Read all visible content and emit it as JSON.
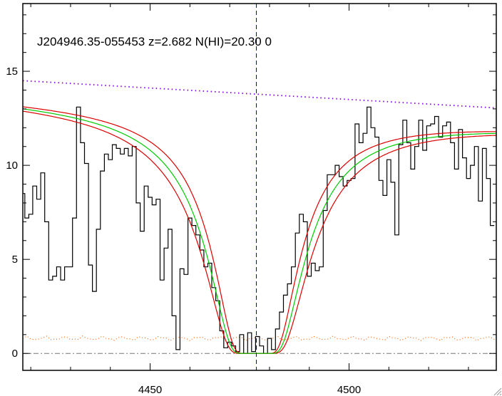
{
  "chart_data": {
    "type": "line",
    "title": "J204946.35-055453 z=2.682 N(HI)=20.30 0",
    "xlabel": "",
    "ylabel": "",
    "xlim": [
      4418,
      4537
    ],
    "ylim": [
      -0.9,
      18.6
    ],
    "x_ticks": [
      4450,
      4500
    ],
    "y_ticks": [
      0,
      5,
      10,
      15
    ],
    "grid": false,
    "vline_x": 4476.7,
    "zero_line_y": 0,
    "colors": {
      "spectrum": "#000000",
      "fit": "#00cc00",
      "fit_bounds": "#dd0000",
      "continuum": "#8800ff",
      "error": "#ff6600",
      "vline": "#0000cc",
      "zero_line": "#777777"
    },
    "series": [
      {
        "kind": "spectrum",
        "x": [
          4418,
          4419,
          4420,
          4421,
          4422,
          4423,
          4424,
          4425,
          4426,
          4427,
          4428,
          4429,
          4430,
          4431,
          4432,
          4433,
          4434,
          4435,
          4436,
          4437,
          4438,
          4439,
          4440,
          4441,
          4442,
          4443,
          4444,
          4445,
          4446,
          4447,
          4448,
          4449,
          4450,
          4451,
          4452,
          4453,
          4454,
          4455,
          4456,
          4457,
          4458,
          4459,
          4460,
          4461,
          4462,
          4463,
          4464,
          4465,
          4466,
          4467,
          4468,
          4469,
          4470,
          4471,
          4472,
          4473,
          4474,
          4475,
          4476,
          4477,
          4478,
          4479,
          4480,
          4481,
          4482,
          4483,
          4484,
          4485,
          4486,
          4487,
          4488,
          4489,
          4490,
          4491,
          4492,
          4493,
          4494,
          4495,
          4496,
          4497,
          4498,
          4499,
          4500,
          4501,
          4502,
          4503,
          4504,
          4505,
          4506,
          4507,
          4508,
          4509,
          4510,
          4511,
          4512,
          4513,
          4514,
          4515,
          4516,
          4517,
          4518,
          4519,
          4520,
          4521,
          4522,
          4523,
          4524,
          4525,
          4526,
          4527,
          4528,
          4529,
          4530,
          4531,
          4532,
          4533,
          4534,
          4535,
          4536
        ],
        "y": [
          8.5,
          7.2,
          7.4,
          8.9,
          8.2,
          9.6,
          7.0,
          3.9,
          4.1,
          4.6,
          3.9,
          4.6,
          4.6,
          7.2,
          13.1,
          11.2,
          10.1,
          4.7,
          3.3,
          6.6,
          9.7,
          10.6,
          10.3,
          11.1,
          10.9,
          10.6,
          10.9,
          10.5,
          11.0,
          8.0,
          6.5,
          8.9,
          8.3,
          7.9,
          8.2,
          3.9,
          5.6,
          6.6,
          2.0,
          0.2,
          4.5,
          4.2,
          7.2,
          6.8,
          6.3,
          5.5,
          4.6,
          4.8,
          3.5,
          2.8,
          1.2,
          0.3,
          0.6,
          0.4,
          0.1,
          1.0,
          0.0,
          1.1,
          0.1,
          0.9,
          0.4,
          0.0,
          0.8,
          0.2,
          1.3,
          2.2,
          3.1,
          3.7,
          4.6,
          6.4,
          7.4,
          7.0,
          4.1,
          4.8,
          4.4,
          4.6,
          7.6,
          9.5,
          9.5,
          10.0,
          9.4,
          8.9,
          9.2,
          9.3,
          12.2,
          11.2,
          11.7,
          13.1,
          12.0,
          11.5,
          9.2,
          8.4,
          10.3,
          9.1,
          6.3,
          11.1,
          12.4,
          11.2,
          9.8,
          11.0,
          12.4,
          10.8,
          12.1,
          12.2,
          12.6,
          11.5,
          12.1,
          12.3,
          11.2,
          9.8,
          11.9,
          10.4,
          9.3,
          10.0,
          11.0,
          8.1,
          10.9,
          9.3,
          6.8
        ]
      }
    ]
  }
}
